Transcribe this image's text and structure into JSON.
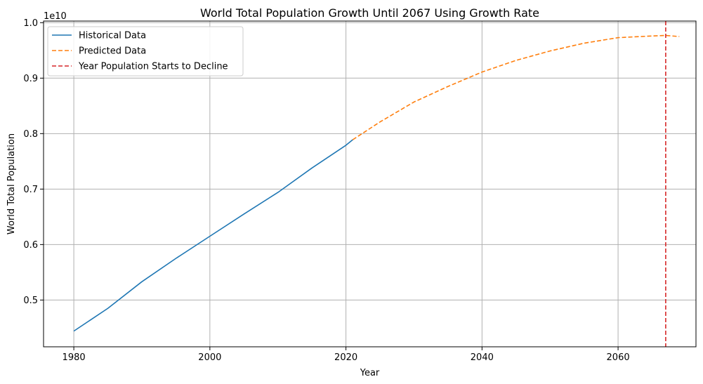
{
  "chart_data": {
    "type": "line",
    "title": "World Total Population Growth Until 2067 Using Growth Rate",
    "xlabel": "Year",
    "ylabel": "World Total Population",
    "offset_label": "1e10",
    "xlim": [
      1975.55,
      2071.45
    ],
    "ylim": [
      0.4157,
      1.0029
    ],
    "xticks": [
      1980,
      2000,
      2020,
      2040,
      2060
    ],
    "yticks": [
      0.5,
      0.6,
      0.7,
      0.8,
      0.9,
      1.0
    ],
    "xtick_labels": [
      "1980",
      "2000",
      "2020",
      "2040",
      "2060"
    ],
    "ytick_labels": [
      "0.5",
      "0.6",
      "0.7",
      "0.8",
      "0.9",
      "1.0"
    ],
    "grid": true,
    "legend_position": "upper-left",
    "series": [
      {
        "name": "Historical Data",
        "style": "solid",
        "color": "#1f77b4",
        "x": [
          1980,
          1985,
          1990,
          1995,
          2000,
          2005,
          2010,
          2015,
          2020,
          2021
        ],
        "y": [
          0.444,
          0.485,
          0.533,
          0.575,
          0.615,
          0.655,
          0.694,
          0.738,
          0.779,
          0.789
        ]
      },
      {
        "name": "Predicted Data",
        "style": "dashed",
        "color": "#ff7f0e",
        "x": [
          2021,
          2025,
          2030,
          2035,
          2040,
          2045,
          2050,
          2055,
          2060,
          2065,
          2067,
          2069
        ],
        "y": [
          0.789,
          0.821,
          0.857,
          0.885,
          0.911,
          0.932,
          0.949,
          0.963,
          0.973,
          0.976,
          0.977,
          0.975
        ]
      }
    ],
    "vlines": [
      {
        "name": "Year Population Starts to Decline",
        "x": 2067,
        "style": "dashed",
        "color": "#d62728"
      }
    ]
  }
}
